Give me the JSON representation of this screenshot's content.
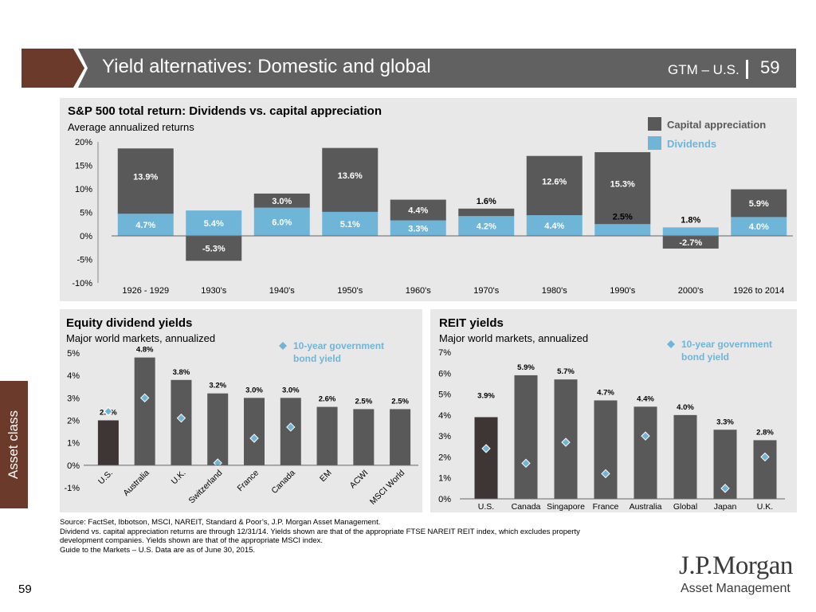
{
  "header": {
    "title": "Yield alternatives: Domestic and global",
    "gtm": "GTM – U.S.",
    "page": "59"
  },
  "sidebar": {
    "label": "Asset class"
  },
  "colors": {
    "capital": "#595959",
    "dividends": "#6fb5d8",
    "us_bar": "#3e3535",
    "marker": "#6fb5d8",
    "brand": "#6b3a2b"
  },
  "chart_data": [
    {
      "type": "bar",
      "title": "S&P 500 total return: Dividends vs. capital appreciation",
      "subtitle": "Average annualized returns",
      "categories": [
        "1926 - 1929",
        "1930's",
        "1940's",
        "1950's",
        "1960's",
        "1970's",
        "1980's",
        "1990's",
        "2000's",
        "1926 to 2014"
      ],
      "series": [
        {
          "name": "Dividends",
          "values": [
            4.7,
            5.4,
            6.0,
            5.1,
            3.3,
            4.2,
            4.4,
            2.5,
            1.8,
            4.0
          ],
          "labels": [
            "4.7%",
            "5.4%",
            "6.0%",
            "5.1%",
            "3.3%",
            "4.2%",
            "4.4%",
            "2.5%",
            "1.8%",
            "4.0%"
          ]
        },
        {
          "name": "Capital appreciation",
          "values": [
            13.9,
            -5.3,
            3.0,
            13.6,
            4.4,
            1.6,
            12.6,
            15.3,
            -2.7,
            5.9
          ],
          "labels": [
            "13.9%",
            "-5.3%",
            "3.0%",
            "13.6%",
            "4.4%",
            "1.6%",
            "12.6%",
            "15.3%",
            "-2.7%",
            "5.9%"
          ]
        }
      ],
      "ylim": [
        -10,
        20
      ],
      "yticks": [
        "-10%",
        "-5%",
        "0%",
        "5%",
        "10%",
        "15%",
        "20%"
      ],
      "legend": [
        "Capital appreciation",
        "Dividends"
      ],
      "legend_position": "top-right"
    },
    {
      "type": "bar",
      "title": "Equity dividend yields",
      "subtitle": "Major world markets, annualized",
      "categories": [
        "U.S.",
        "Australia",
        "U.K.",
        "Switzerland",
        "France",
        "Canada",
        "EM",
        "ACWI",
        "MSCI World"
      ],
      "values": [
        2.0,
        4.8,
        3.8,
        3.2,
        3.0,
        3.0,
        2.6,
        2.5,
        2.5
      ],
      "labels": [
        "2.0%",
        "4.8%",
        "3.8%",
        "3.2%",
        "3.0%",
        "3.0%",
        "2.6%",
        "2.5%",
        "2.5%"
      ],
      "bond_yield": [
        2.4,
        3.0,
        2.1,
        0.1,
        1.2,
        1.7,
        null,
        null,
        null
      ],
      "bond_legend": [
        "10-year government",
        "bond yield"
      ],
      "ylim": [
        -1,
        5
      ],
      "yticks": [
        "-1%",
        "0%",
        "1%",
        "2%",
        "3%",
        "4%",
        "5%"
      ]
    },
    {
      "type": "bar",
      "title": "REIT yields",
      "subtitle": "Major world markets, annualized",
      "categories": [
        "U.S.",
        "Canada",
        "Singapore",
        "France",
        "Australia",
        "Global",
        "Japan",
        "U.K."
      ],
      "values": [
        3.9,
        5.9,
        5.7,
        4.7,
        4.4,
        4.0,
        3.3,
        2.8
      ],
      "labels": [
        "3.9%",
        "5.9%",
        "5.7%",
        "4.7%",
        "4.4%",
        "4.0%",
        "3.3%",
        "2.8%"
      ],
      "bond_yield": [
        2.4,
        1.7,
        2.7,
        1.2,
        3.0,
        null,
        0.5,
        2.0
      ],
      "bond_legend": [
        "10-year government",
        "bond yield"
      ],
      "ylim": [
        0,
        7
      ],
      "yticks": [
        "0%",
        "1%",
        "2%",
        "3%",
        "4%",
        "5%",
        "6%",
        "7%"
      ]
    }
  ],
  "source": [
    "Source: FactSet, Ibbotson, MSCI, NAREIT, Standard & Poor’s, J.P. Morgan Asset Management.",
    "Dividend vs. capital appreciation returns are through 12/31/14. Yields shown are that of the appropriate FTSE NAREIT REIT index, which excludes property",
    "development companies. Yields shown are that of the appropriate MSCI index.",
    "Guide to the Markets – U.S. Data are as of June 30, 2015."
  ],
  "page_number": "59",
  "logo": {
    "name": "J.P.Morgan",
    "sub": "Asset Management"
  }
}
